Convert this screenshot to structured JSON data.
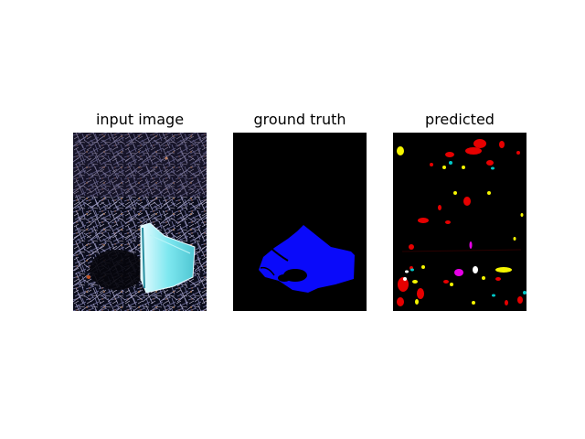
{
  "figure": {
    "panels": [
      {
        "title": "input image",
        "image_description": "dark, high-contrast photo of tangled debris and twigs on the ground with a cyan/white bag in the lower center"
      },
      {
        "title": "ground truth",
        "image_description": "black mask with one blue filled polygon region in the lower half"
      },
      {
        "title": "predicted",
        "image_description": "black mask with many scattered small red, yellow, cyan, white and magenta blobs"
      }
    ],
    "colors": {
      "background": "#000000",
      "ground_truth_fill": "#0a0afa",
      "pred_red": "#e60000",
      "pred_yellow": "#f5f500",
      "pred_cyan": "#00c8c8",
      "pred_white": "#ffffff",
      "pred_magenta": "#e600e6",
      "bag_cyan": "#7fe8f0"
    }
  }
}
